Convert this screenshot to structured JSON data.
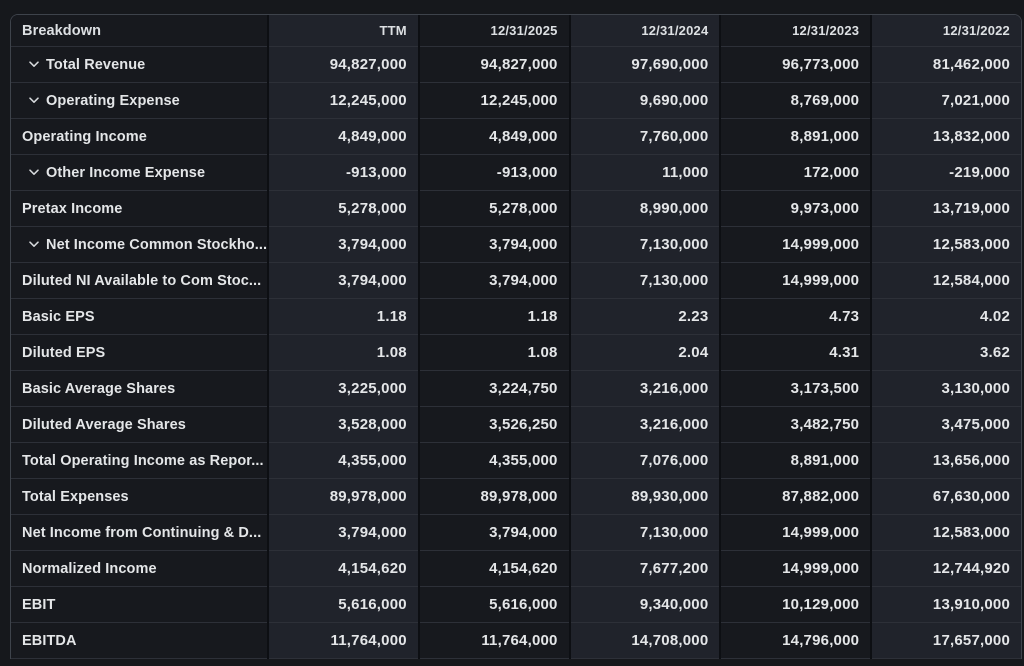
{
  "table": {
    "columns": [
      {
        "label": "Breakdown"
      },
      {
        "label": "TTM"
      },
      {
        "label": "12/31/2025"
      },
      {
        "label": "12/31/2024"
      },
      {
        "label": "12/31/2023"
      },
      {
        "label": "12/31/2022"
      }
    ],
    "rows": [
      {
        "label": "Total Revenue",
        "expandable": true,
        "values": [
          "94,827,000",
          "94,827,000",
          "97,690,000",
          "96,773,000",
          "81,462,000"
        ]
      },
      {
        "label": "Operating Expense",
        "expandable": true,
        "values": [
          "12,245,000",
          "12,245,000",
          "9,690,000",
          "8,769,000",
          "7,021,000"
        ]
      },
      {
        "label": "Operating Income",
        "expandable": false,
        "values": [
          "4,849,000",
          "4,849,000",
          "7,760,000",
          "8,891,000",
          "13,832,000"
        ]
      },
      {
        "label": "Other Income Expense",
        "expandable": true,
        "values": [
          "-913,000",
          "-913,000",
          "11,000",
          "172,000",
          "-219,000"
        ]
      },
      {
        "label": "Pretax Income",
        "expandable": false,
        "values": [
          "5,278,000",
          "5,278,000",
          "8,990,000",
          "9,973,000",
          "13,719,000"
        ]
      },
      {
        "label": "Net Income Common Stockho...",
        "expandable": true,
        "values": [
          "3,794,000",
          "3,794,000",
          "7,130,000",
          "14,999,000",
          "12,583,000"
        ]
      },
      {
        "label": "Diluted NI Available to Com Stoc...",
        "expandable": false,
        "values": [
          "3,794,000",
          "3,794,000",
          "7,130,000",
          "14,999,000",
          "12,584,000"
        ]
      },
      {
        "label": "Basic EPS",
        "expandable": false,
        "values": [
          "1.18",
          "1.18",
          "2.23",
          "4.73",
          "4.02"
        ]
      },
      {
        "label": "Diluted EPS",
        "expandable": false,
        "values": [
          "1.08",
          "1.08",
          "2.04",
          "4.31",
          "3.62"
        ]
      },
      {
        "label": "Basic Average Shares",
        "expandable": false,
        "values": [
          "3,225,000",
          "3,224,750",
          "3,216,000",
          "3,173,500",
          "3,130,000"
        ]
      },
      {
        "label": "Diluted Average Shares",
        "expandable": false,
        "values": [
          "3,528,000",
          "3,526,250",
          "3,216,000",
          "3,482,750",
          "3,475,000"
        ]
      },
      {
        "label": "Total Operating Income as Repor...",
        "expandable": false,
        "values": [
          "4,355,000",
          "4,355,000",
          "7,076,000",
          "8,891,000",
          "13,656,000"
        ]
      },
      {
        "label": "Total Expenses",
        "expandable": false,
        "values": [
          "89,978,000",
          "89,978,000",
          "89,930,000",
          "87,882,000",
          "67,630,000"
        ]
      },
      {
        "label": "Net Income from Continuing & D...",
        "expandable": false,
        "values": [
          "3,794,000",
          "3,794,000",
          "7,130,000",
          "14,999,000",
          "12,583,000"
        ]
      },
      {
        "label": "Normalized Income",
        "expandable": false,
        "values": [
          "4,154,620",
          "4,154,620",
          "7,677,200",
          "14,999,000",
          "12,744,920"
        ]
      },
      {
        "label": "EBIT",
        "expandable": false,
        "values": [
          "5,616,000",
          "5,616,000",
          "9,340,000",
          "10,129,000",
          "13,910,000"
        ]
      },
      {
        "label": "EBITDA",
        "expandable": false,
        "values": [
          "11,764,000",
          "11,764,000",
          "14,708,000",
          "14,796,000",
          "17,657,000"
        ]
      }
    ]
  },
  "icons": {
    "row_expander": "chevron-down"
  },
  "colors": {
    "page_background": "#16181c",
    "cell_dark": "#17191e",
    "cell_light": "#20232b",
    "row_separator": "#2d3038",
    "column_gap": "#0d0f13",
    "outer_border": "#3e434b",
    "text": "#e4e6e8"
  }
}
